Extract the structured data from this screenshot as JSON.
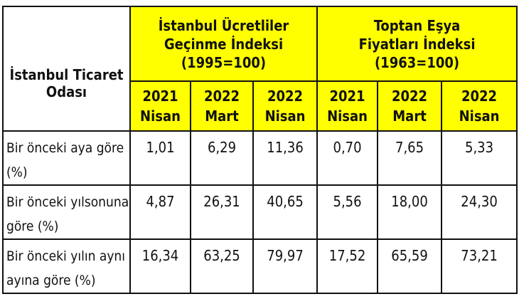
{
  "corner_label": "İstanbul Ticaret Odası",
  "groups": [
    {
      "title_lines": [
        "İstanbul Ücretliler",
        "Geçinme İndeksi",
        "(1995=100)"
      ]
    },
    {
      "title_lines": [
        "Toptan Eşya",
        "Fiyatları İndeksi",
        "(1963=100)"
      ]
    }
  ],
  "columns": [
    {
      "year": "2021",
      "month": "Nisan"
    },
    {
      "year": "2022",
      "month": "Mart"
    },
    {
      "year": "2022",
      "month": "Nisan"
    },
    {
      "year": "2021",
      "month": "Nisan"
    },
    {
      "year": "2022",
      "month": "Mart"
    },
    {
      "year": "2022",
      "month": "Nisan"
    }
  ],
  "rows": [
    {
      "label": "Bir önceki aya göre (%)",
      "values": [
        "1,01",
        "6,29",
        "11,36",
        "0,70",
        "7,65",
        "5,33"
      ]
    },
    {
      "label": "Bir önceki yılsonuna göre (%)",
      "values": [
        "4,87",
        "26,31",
        "40,65",
        "5,56",
        "18,00",
        "24,30"
      ]
    },
    {
      "label": "Bir önceki yılın aynı ayına göre (%)",
      "values": [
        "16,34",
        "63,25",
        "79,97",
        "17,52",
        "65,59",
        "73,21"
      ]
    }
  ],
  "colors": {
    "header_bg": "#ffff00",
    "border": "#111111"
  }
}
